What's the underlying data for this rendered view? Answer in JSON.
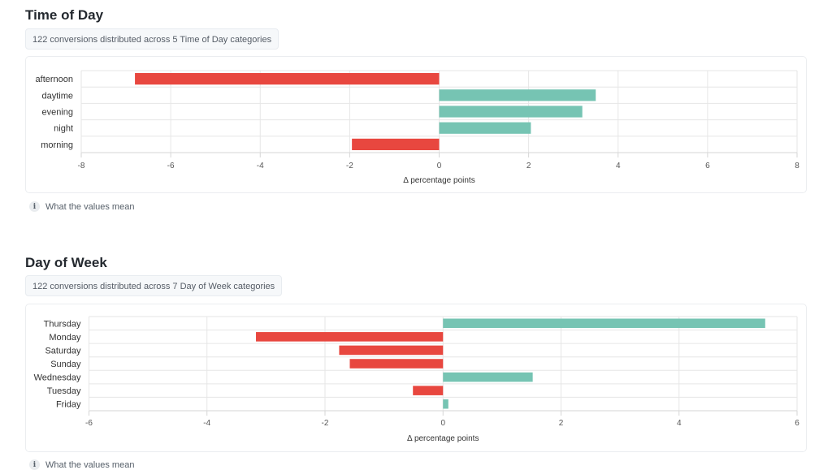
{
  "colors": {
    "negative": "#e8473f",
    "positive": "#76c4b3",
    "grid": "#e6e6e6",
    "axis": "#d6d6d6",
    "tick_text": "#555555",
    "label_text": "#333333"
  },
  "sections": [
    {
      "title": "Time of Day",
      "summary": "122 conversions distributed across 5 Time of Day categories",
      "info_label": "What the values mean",
      "info_icon": "info-icon"
    },
    {
      "title": "Day of Week",
      "summary": "122 conversions distributed across 7 Day of Week categories",
      "info_label": "What the values mean",
      "info_icon": "info-icon"
    }
  ],
  "chart_data": [
    {
      "type": "bar",
      "orientation": "horizontal",
      "title": "Time of Day",
      "categories": [
        "afternoon",
        "daytime",
        "evening",
        "night",
        "morning"
      ],
      "values": [
        -6.8,
        3.5,
        3.2,
        2.05,
        -1.95
      ],
      "xlabel": "Δ percentage points",
      "ylabel": "",
      "xlim": [
        -8,
        8
      ],
      "xticks": [
        -8,
        -6,
        -4,
        -2,
        0,
        2,
        4,
        6,
        8
      ],
      "xtick_labels": [
        "-8",
        "-6",
        "-4",
        "-2",
        "0",
        "2",
        "4",
        "6",
        "8"
      ],
      "grid": true,
      "legend": "none"
    },
    {
      "type": "bar",
      "orientation": "horizontal",
      "title": "Day of Week",
      "categories": [
        "Thursday",
        "Monday",
        "Saturday",
        "Sunday",
        "Wednesday",
        "Tuesday",
        "Friday"
      ],
      "values": [
        5.46,
        -3.17,
        -1.76,
        -1.58,
        1.52,
        -0.51,
        0.09
      ],
      "xlabel": "Δ percentage points",
      "ylabel": "",
      "xlim": [
        -6,
        6
      ],
      "xticks": [
        -6,
        -4,
        -2,
        0,
        2,
        4,
        6
      ],
      "xtick_labels": [
        "-6",
        "-4",
        "-2",
        "0",
        "2",
        "4",
        "6"
      ],
      "grid": true,
      "legend": "none"
    }
  ]
}
